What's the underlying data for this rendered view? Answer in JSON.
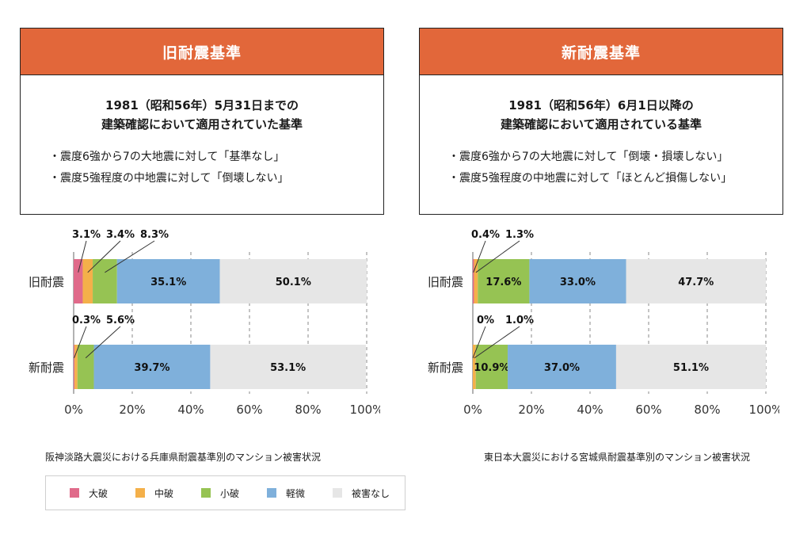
{
  "cards": {
    "left": {
      "title": "旧耐震基準",
      "heading_line1": "1981（昭和56年）5月31日までの",
      "heading_line2": "建築確認において適用されていた基準",
      "bullets": [
        "・震度6強から7の大地震に対して「基準なし」",
        "・震度5強程度の中地震に対して「倒壊しない」"
      ]
    },
    "right": {
      "title": "新耐震基準",
      "heading_line1": "1981（昭和56年）6月1日以降の",
      "heading_line2": "建築確認において適用されている基準",
      "bullets": [
        "・震度6強から7の大地震に対して「倒壊・損壊しない」",
        "・震度5強程度の中地震に対して「ほとんど損傷しない」"
      ]
    }
  },
  "captions": {
    "left": "阪神淡路大震災における兵庫県耐震基準別のマンション被害状況",
    "right": "東日本大震災における宮城県耐震基準別のマンション被害状況"
  },
  "legend": [
    {
      "label": "大破",
      "color": "#e06a8a"
    },
    {
      "label": "中破",
      "color": "#f4b04a"
    },
    {
      "label": "小破",
      "color": "#96c353"
    },
    {
      "label": "軽微",
      "color": "#7fb0db"
    },
    {
      "label": "被害なし",
      "color": "#e6e6e6"
    }
  ],
  "chart_data": [
    {
      "type": "bar",
      "orientation": "horizontal",
      "stacked": true,
      "categories": [
        "旧耐震",
        "新耐震"
      ],
      "series": [
        {
          "name": "大破",
          "values": [
            3.1,
            0.3
          ]
        },
        {
          "name": "中破",
          "values": [
            3.4,
            1.0
          ]
        },
        {
          "name": "小破",
          "values": [
            8.3,
            5.6
          ]
        },
        {
          "name": "軽微",
          "values": [
            35.1,
            39.7
          ]
        },
        {
          "name": "被害なし",
          "values": [
            50.1,
            53.1
          ]
        }
      ],
      "inside_labels": [
        [
          "",
          "",
          "",
          "35.1%",
          "50.1%"
        ],
        [
          "",
          "",
          "",
          "39.7%",
          "53.1%"
        ]
      ],
      "callouts": [
        [
          {
            "text": "3.1%",
            "seg": 0
          },
          {
            "text": "3.4%",
            "seg": 1
          },
          {
            "text": "8.3%",
            "seg": 2
          }
        ],
        [
          {
            "text": "0.3%",
            "seg": 0
          },
          {
            "text": "5.6%",
            "seg": 2
          }
        ]
      ],
      "xticks": [
        "0%",
        "20%",
        "40%",
        "60%",
        "80%",
        "100%"
      ],
      "xlim": [
        0,
        100
      ],
      "grid": "vertical dashed",
      "caption": "阪神淡路大震災における兵庫県耐震基準別のマンション被害状況"
    },
    {
      "type": "bar",
      "orientation": "horizontal",
      "stacked": true,
      "categories": [
        "旧耐震",
        "新耐震"
      ],
      "series": [
        {
          "name": "大破",
          "values": [
            0.4,
            0
          ]
        },
        {
          "name": "中破",
          "values": [
            1.3,
            1.0
          ]
        },
        {
          "name": "小破",
          "values": [
            17.6,
            10.9
          ]
        },
        {
          "name": "軽微",
          "values": [
            33.0,
            37.0
          ]
        },
        {
          "name": "被害なし",
          "values": [
            47.7,
            51.1
          ]
        }
      ],
      "inside_labels": [
        [
          "",
          "",
          "17.6%",
          "33.0%",
          "47.7%"
        ],
        [
          "",
          "",
          "10.9%",
          "37.0%",
          "51.1%"
        ]
      ],
      "callouts": [
        [
          {
            "text": "0.4%",
            "seg": 0
          },
          {
            "text": "1.3%",
            "seg": 1
          }
        ],
        [
          {
            "text": "0%",
            "seg": 0
          },
          {
            "text": "1.0%",
            "seg": 1
          }
        ]
      ],
      "xticks": [
        "0%",
        "20%",
        "40%",
        "60%",
        "80%",
        "100%"
      ],
      "xlim": [
        0,
        100
      ],
      "grid": "vertical dashed",
      "caption": "東日本大震災における宮城県耐震基準別のマンション被害状況"
    }
  ]
}
